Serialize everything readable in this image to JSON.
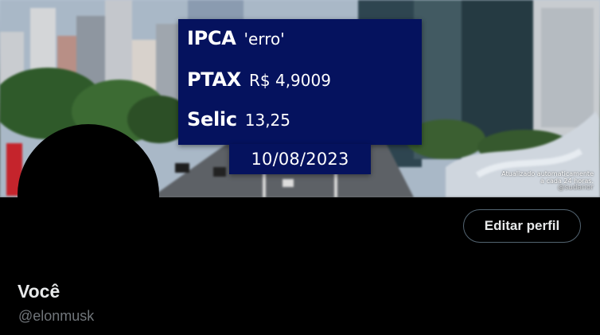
{
  "banner": {
    "ipca": {
      "label": "IPCA",
      "value": "'erro'"
    },
    "ptax": {
      "label": "PTAX",
      "value": "R$ 4,9009"
    },
    "selic": {
      "label": "Selic",
      "value": "13,25"
    },
    "date": "10/08/2023",
    "auto_note_line1": "Atualizado automaticamente",
    "auto_note_line2": "a cada 24 horas.",
    "auto_note_handle": "@sudanor",
    "panel_color": "#05125e"
  },
  "profile": {
    "edit_button_label": "Editar perfil",
    "display_name": "Você",
    "handle": "@elonmusk"
  },
  "colors": {
    "background": "#000000",
    "primary_text": "#e7e9ea",
    "secondary_text": "#71767b",
    "button_border": "#536471"
  }
}
